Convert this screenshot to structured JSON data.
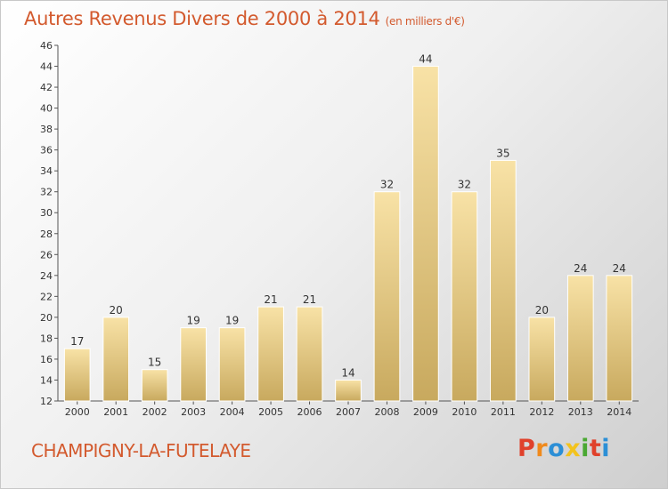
{
  "title": "Autres Revenus Divers de 2000 à 2014",
  "unit": "(en milliers d'€)",
  "commune": "CHAMPIGNY-LA-FUTELAYE",
  "logo": "Proxiti",
  "colors": {
    "title": "#d35a2e",
    "bar_light": "#f8e2a6",
    "bar_dark": "#c8a95e",
    "logo": [
      "#e0412b",
      "#f08a1c",
      "#2c8fd6",
      "#f3c31d",
      "#4aa832",
      "#e0412b",
      "#2c8fd6"
    ]
  },
  "chart_data": {
    "type": "bar",
    "categories": [
      "2000",
      "2001",
      "2002",
      "2003",
      "2004",
      "2005",
      "2006",
      "2007",
      "2008",
      "2009",
      "2010",
      "2011",
      "2012",
      "2013",
      "2014"
    ],
    "values": [
      17,
      20,
      15,
      19,
      19,
      21,
      21,
      14,
      32,
      44,
      32,
      35,
      20,
      24,
      24
    ],
    "title": "Autres Revenus Divers de 2000 à 2014",
    "xlabel": "",
    "ylabel": "",
    "ylim": [
      12,
      46
    ],
    "yticks": [
      12,
      14,
      16,
      18,
      20,
      22,
      24,
      26,
      28,
      30,
      32,
      34,
      36,
      38,
      40,
      42,
      44,
      46
    ],
    "grid": false,
    "data_labels": true
  }
}
